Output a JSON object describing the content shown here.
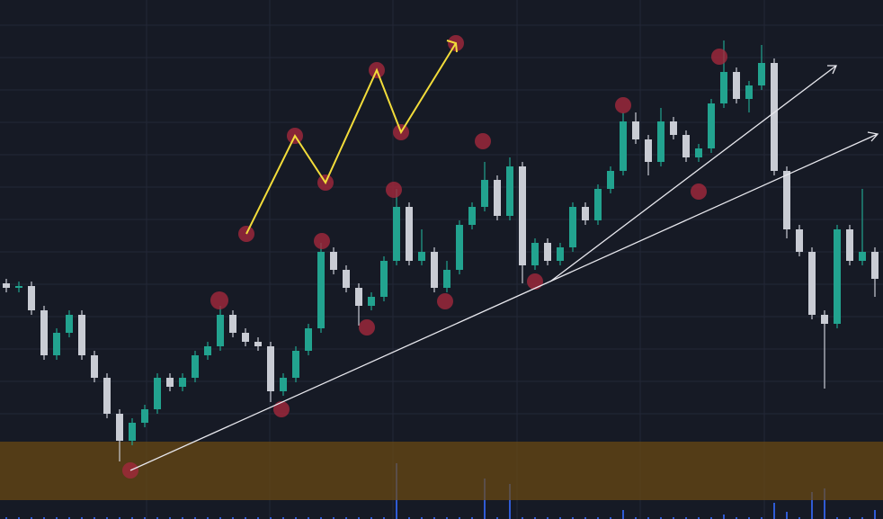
{
  "chart_data": {
    "type": "candlestick",
    "open": [
      262,
      257,
      259,
      232,
      182,
      207,
      227,
      182,
      157,
      117,
      87,
      107,
      122,
      157,
      147,
      157,
      182,
      192,
      227,
      207,
      197,
      192,
      142,
      157,
      187,
      212,
      297,
      277,
      257,
      237,
      247,
      287,
      347,
      287,
      297,
      257,
      277,
      327,
      347,
      377,
      337,
      392,
      282,
      307,
      287,
      302,
      347,
      332,
      367,
      387,
      442,
      422,
      397,
      442,
      427,
      402,
      412,
      462,
      497,
      467,
      482,
      507,
      387,
      322,
      297,
      227,
      217,
      322,
      287,
      297
    ],
    "high": [
      267,
      264,
      264,
      237,
      212,
      232,
      232,
      187,
      162,
      122,
      112,
      127,
      162,
      162,
      162,
      187,
      197,
      237,
      232,
      212,
      202,
      197,
      162,
      192,
      217,
      307,
      302,
      282,
      262,
      252,
      292,
      367,
      352,
      322,
      302,
      287,
      332,
      352,
      397,
      382,
      402,
      397,
      312,
      312,
      307,
      352,
      352,
      372,
      392,
      452,
      452,
      427,
      457,
      447,
      432,
      417,
      467,
      532,
      502,
      487,
      527,
      512,
      392,
      327,
      302,
      232,
      327,
      327,
      367,
      302
    ],
    "low": [
      252,
      252,
      227,
      177,
      177,
      202,
      177,
      152,
      112,
      64,
      82,
      102,
      117,
      142,
      142,
      152,
      177,
      187,
      202,
      192,
      187,
      130,
      137,
      152,
      182,
      207,
      272,
      252,
      215,
      232,
      242,
      282,
      282,
      282,
      252,
      252,
      272,
      322,
      342,
      332,
      332,
      262,
      277,
      282,
      282,
      297,
      327,
      327,
      362,
      382,
      417,
      382,
      392,
      422,
      397,
      397,
      407,
      457,
      462,
      452,
      477,
      382,
      312,
      292,
      222,
      145,
      212,
      282,
      282,
      247
    ],
    "close": [
      257,
      259,
      232,
      182,
      207,
      227,
      182,
      157,
      117,
      87,
      107,
      122,
      157,
      147,
      157,
      182,
      192,
      227,
      207,
      197,
      192,
      142,
      157,
      187,
      212,
      297,
      277,
      257,
      237,
      247,
      287,
      347,
      287,
      297,
      257,
      277,
      327,
      347,
      377,
      337,
      392,
      282,
      307,
      287,
      302,
      347,
      332,
      367,
      387,
      442,
      422,
      397,
      442,
      427,
      402,
      412,
      462,
      497,
      467,
      482,
      507,
      387,
      322,
      297,
      227,
      217,
      322,
      287,
      297,
      267
    ],
    "volume": [
      2,
      2,
      2,
      2,
      2,
      2,
      2,
      2,
      2,
      2,
      2,
      2,
      2,
      2,
      2,
      2,
      2,
      2,
      2,
      2,
      2,
      2,
      2,
      2,
      2,
      2,
      2,
      2,
      2,
      2,
      2,
      62,
      2,
      2,
      2,
      2,
      2,
      2,
      45,
      2,
      39,
      2,
      2,
      2,
      2,
      2,
      2,
      2,
      2,
      10,
      2,
      2,
      2,
      2,
      2,
      2,
      2,
      5,
      2,
      2,
      2,
      18,
      8,
      2,
      30,
      34,
      2,
      2,
      2,
      10
    ],
    "ylim": [
      0,
      577
    ],
    "colors": {
      "up": "#22a38f",
      "down": "#c9ccd4",
      "volume": "#2f5bd6"
    }
  }
}
